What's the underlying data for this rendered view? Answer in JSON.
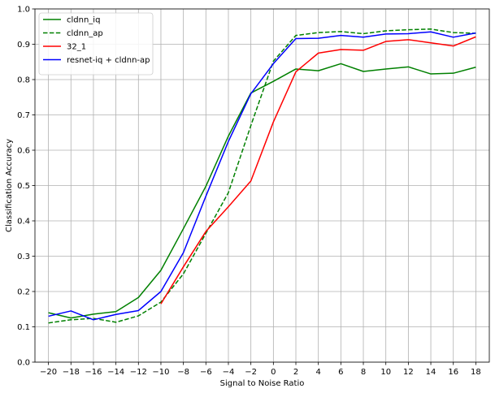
{
  "chart_data": {
    "type": "line",
    "xlabel": "Signal to Noise Ratio",
    "ylabel": "Classification Accuracy",
    "xlim": [
      -21.2,
      19.2
    ],
    "ylim": [
      0,
      1.0
    ],
    "xticks": [
      -20,
      -18,
      -16,
      -14,
      -12,
      -10,
      -8,
      -6,
      -4,
      -2,
      0,
      2,
      4,
      6,
      8,
      10,
      12,
      14,
      16,
      18
    ],
    "yticks": [
      0.0,
      0.1,
      0.2,
      0.3,
      0.4,
      0.5,
      0.6,
      0.7,
      0.8,
      0.9,
      1.0
    ],
    "grid": true,
    "legend_position": "top-left",
    "series": [
      {
        "name": "cldnn_iq",
        "color": "#008000",
        "dash": "solid",
        "x": [
          -20,
          -18,
          -16,
          -14,
          -12,
          -10,
          -8,
          -6,
          -4,
          -2,
          0,
          2,
          4,
          6,
          8,
          10,
          12,
          14,
          16,
          18
        ],
        "values": [
          0.14,
          0.125,
          0.136,
          0.143,
          0.183,
          0.26,
          0.378,
          0.498,
          0.64,
          0.762,
          0.795,
          0.83,
          0.825,
          0.845,
          0.823,
          0.83,
          0.836,
          0.816,
          0.818,
          0.835
        ]
      },
      {
        "name": "cldnn_ap",
        "color": "#008000",
        "dash": "dashed",
        "x": [
          -20,
          -18,
          -16,
          -14,
          -12,
          -10,
          -8,
          -6,
          -4,
          -2,
          0,
          2,
          4,
          6,
          8,
          10,
          12,
          14,
          16,
          18
        ],
        "values": [
          0.111,
          0.12,
          0.124,
          0.113,
          0.131,
          0.17,
          0.25,
          0.365,
          0.48,
          0.67,
          0.852,
          0.925,
          0.933,
          0.936,
          0.93,
          0.938,
          0.941,
          0.943,
          0.933,
          0.931
        ]
      },
      {
        "name": "32_1",
        "color": "#ff0000",
        "dash": "solid",
        "x": [
          -10,
          -8,
          -6,
          -4,
          -2,
          0,
          2,
          4,
          6,
          8,
          10,
          12,
          14,
          16,
          18
        ],
        "values": [
          0.165,
          0.27,
          0.37,
          0.44,
          0.513,
          0.68,
          0.822,
          0.875,
          0.885,
          0.883,
          0.908,
          0.913,
          0.904,
          0.895,
          0.921
        ]
      },
      {
        "name": "resnet-iq + cldnn-ap",
        "color": "#0000ff",
        "dash": "solid",
        "x": [
          -20,
          -18,
          -16,
          -14,
          -12,
          -10,
          -8,
          -6,
          -4,
          -2,
          0,
          2,
          4,
          6,
          8,
          10,
          12,
          14,
          16,
          18
        ],
        "values": [
          0.13,
          0.145,
          0.12,
          0.135,
          0.146,
          0.2,
          0.31,
          0.47,
          0.625,
          0.76,
          0.845,
          0.916,
          0.917,
          0.925,
          0.92,
          0.929,
          0.93,
          0.935,
          0.92,
          0.932
        ]
      }
    ]
  }
}
